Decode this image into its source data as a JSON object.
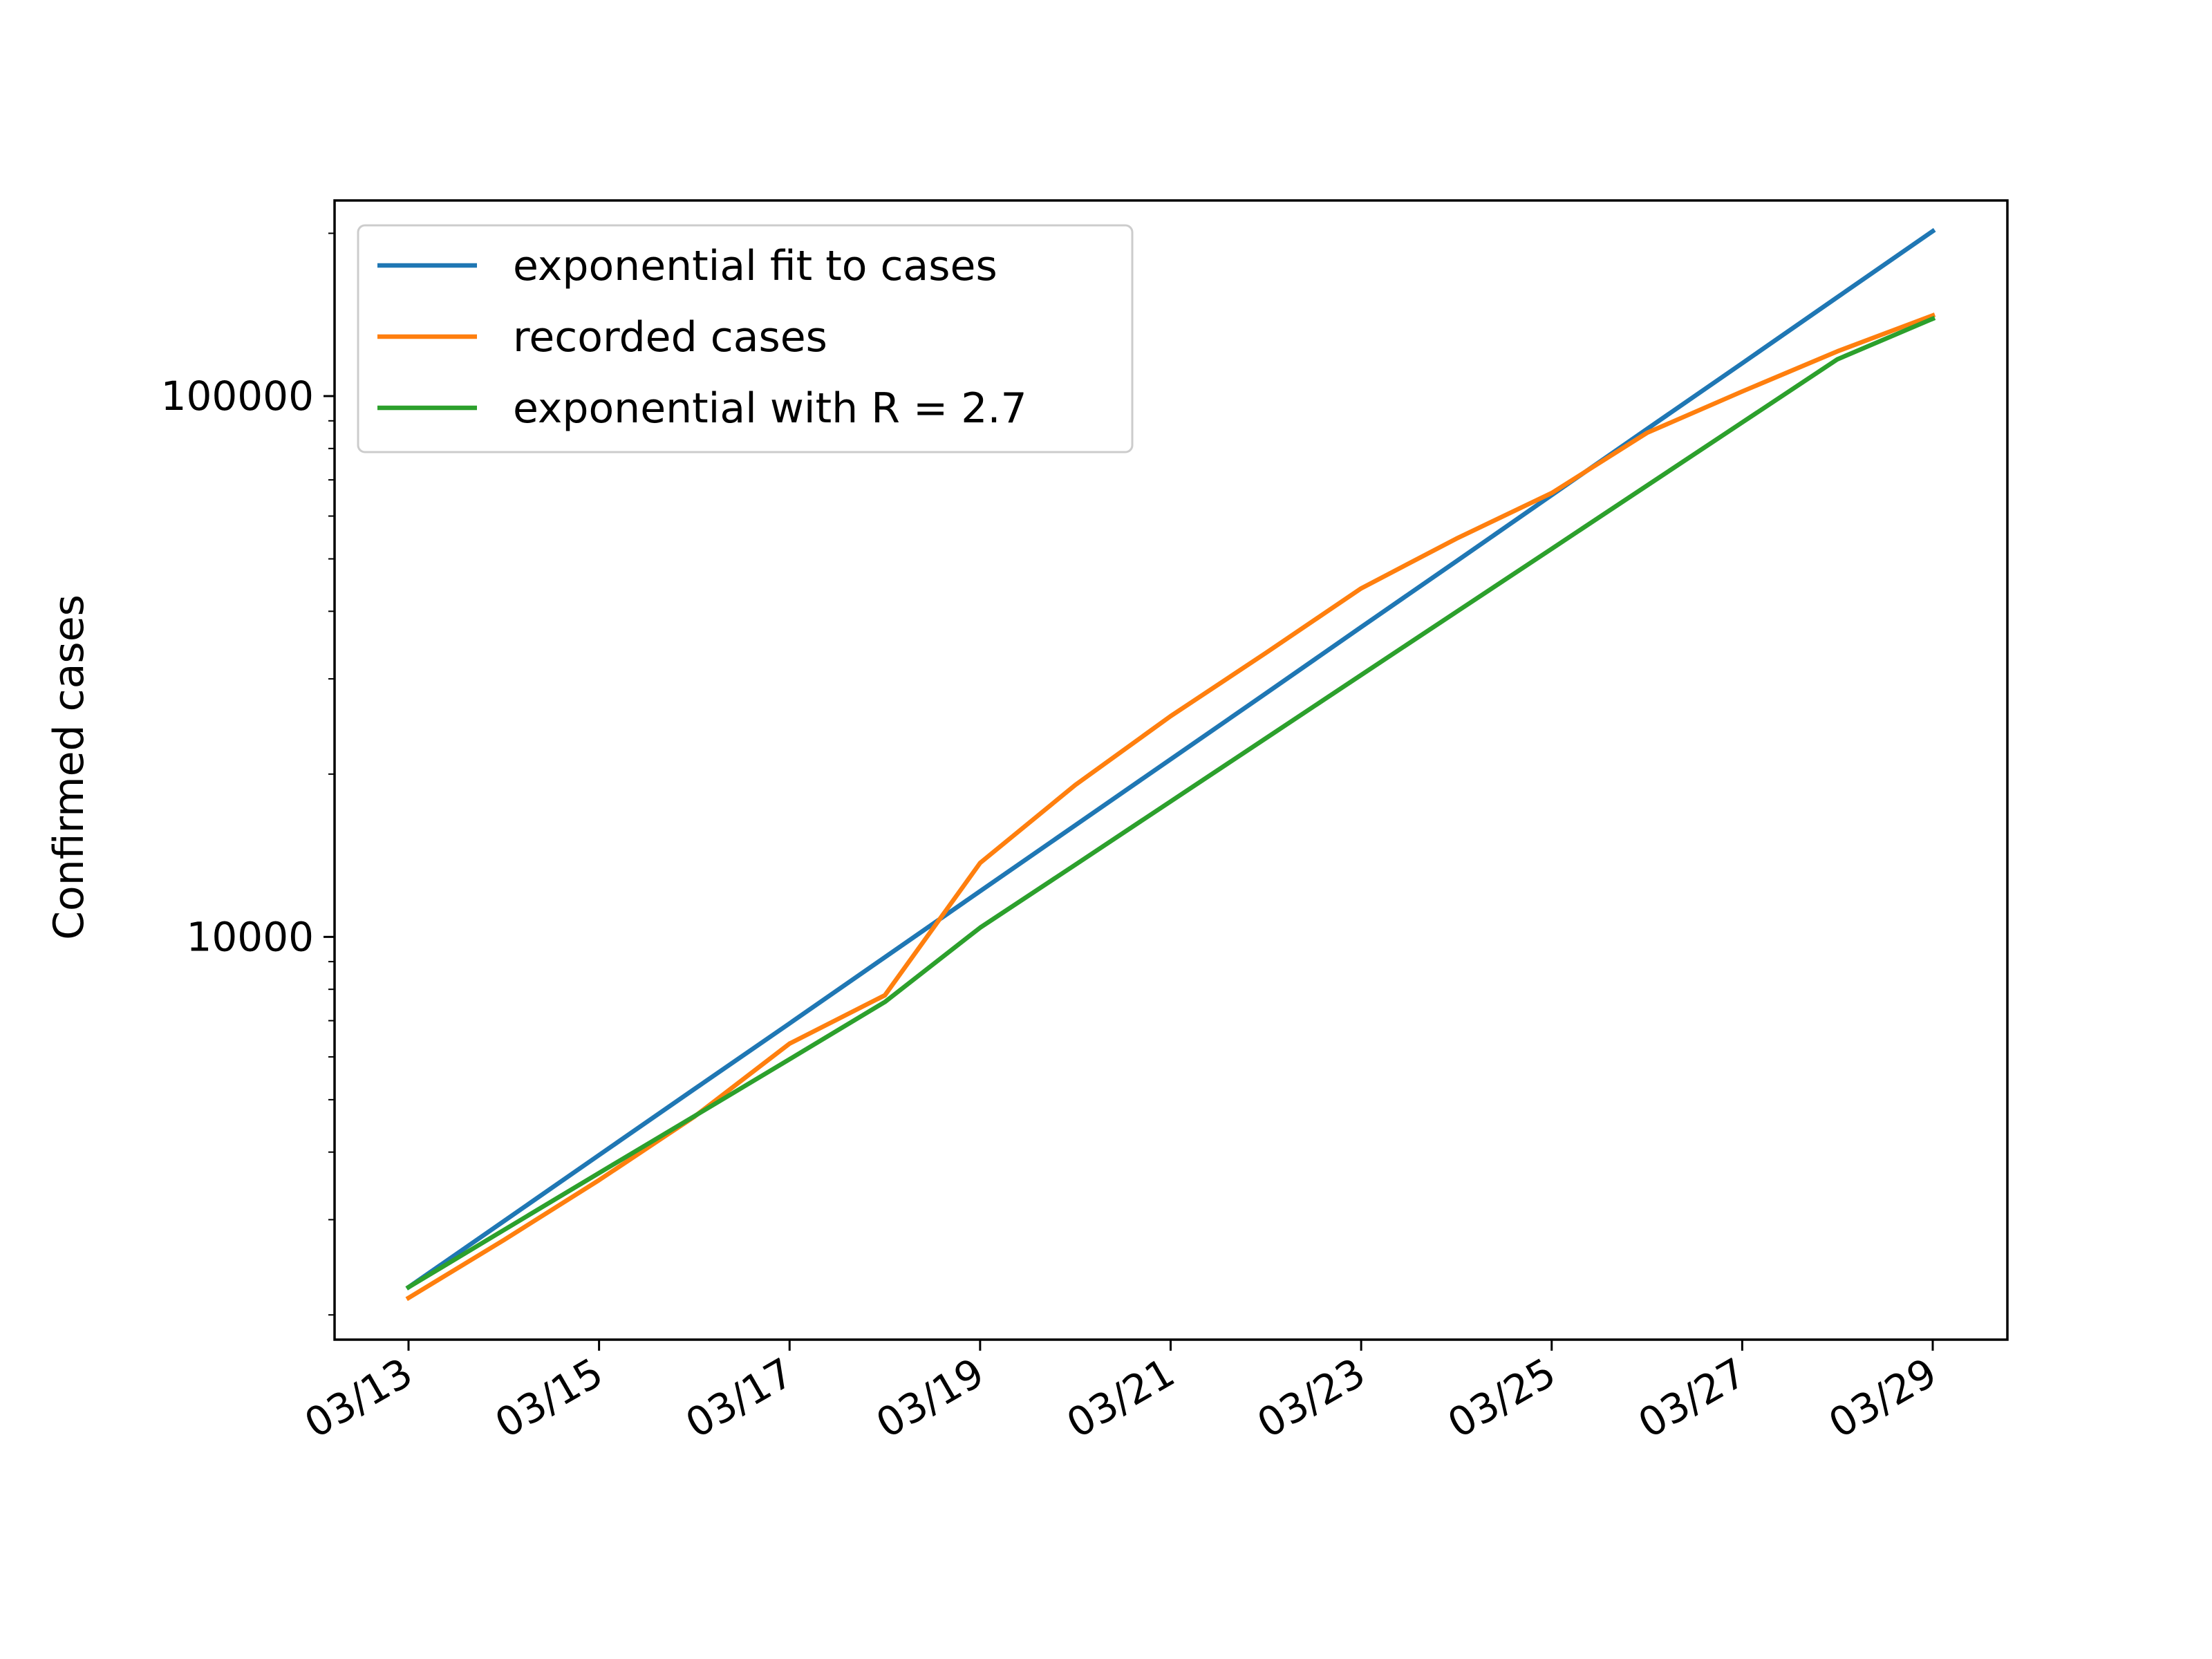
{
  "chart_data": {
    "type": "line",
    "title": "",
    "xlabel": "",
    "ylabel": "Confirmed cases",
    "yscale": "log",
    "xlim": [
      "03/13",
      "03/29"
    ],
    "ylim": [
      1800,
      230000
    ],
    "x": [
      "03/13",
      "03/14",
      "03/15",
      "03/16",
      "03/17",
      "03/18",
      "03/19",
      "03/20",
      "03/21",
      "03/22",
      "03/23",
      "03/24",
      "03/25",
      "03/26",
      "03/27",
      "03/28",
      "03/29"
    ],
    "x_ticks": [
      "03/13",
      "03/15",
      "03/17",
      "03/19",
      "03/21",
      "03/23",
      "03/25",
      "03/27",
      "03/29"
    ],
    "y_ticks": [
      10000,
      100000
    ],
    "y_tick_labels": [
      "10000",
      "100000"
    ],
    "grid": false,
    "legend_position": "upper-left",
    "series": [
      {
        "name": "exponential fit to cases",
        "color": "#1f77b4",
        "values": [
          2250,
          2980,
          3950,
          5230,
          6920,
          9170,
          12150,
          16090,
          21300,
          28200,
          37400,
          49500,
          65600,
          86900,
          115000,
          152400,
          201800
        ]
      },
      {
        "name": "recorded cases",
        "color": "#ff7f0e",
        "values": [
          2150,
          2750,
          3550,
          4650,
          6350,
          7800,
          13700,
          19100,
          25600,
          33500,
          44100,
          54500,
          66200,
          85500,
          102000,
          121000,
          141000
        ]
      },
      {
        "name": "exponential with R = 2.7",
        "color": "#2ca02c",
        "values": [
          2250,
          2870,
          3660,
          4660,
          5940,
          7580,
          10400,
          13600,
          17800,
          23300,
          30500,
          39900,
          52200,
          68300,
          89400,
          117000,
          139000
        ]
      }
    ]
  }
}
